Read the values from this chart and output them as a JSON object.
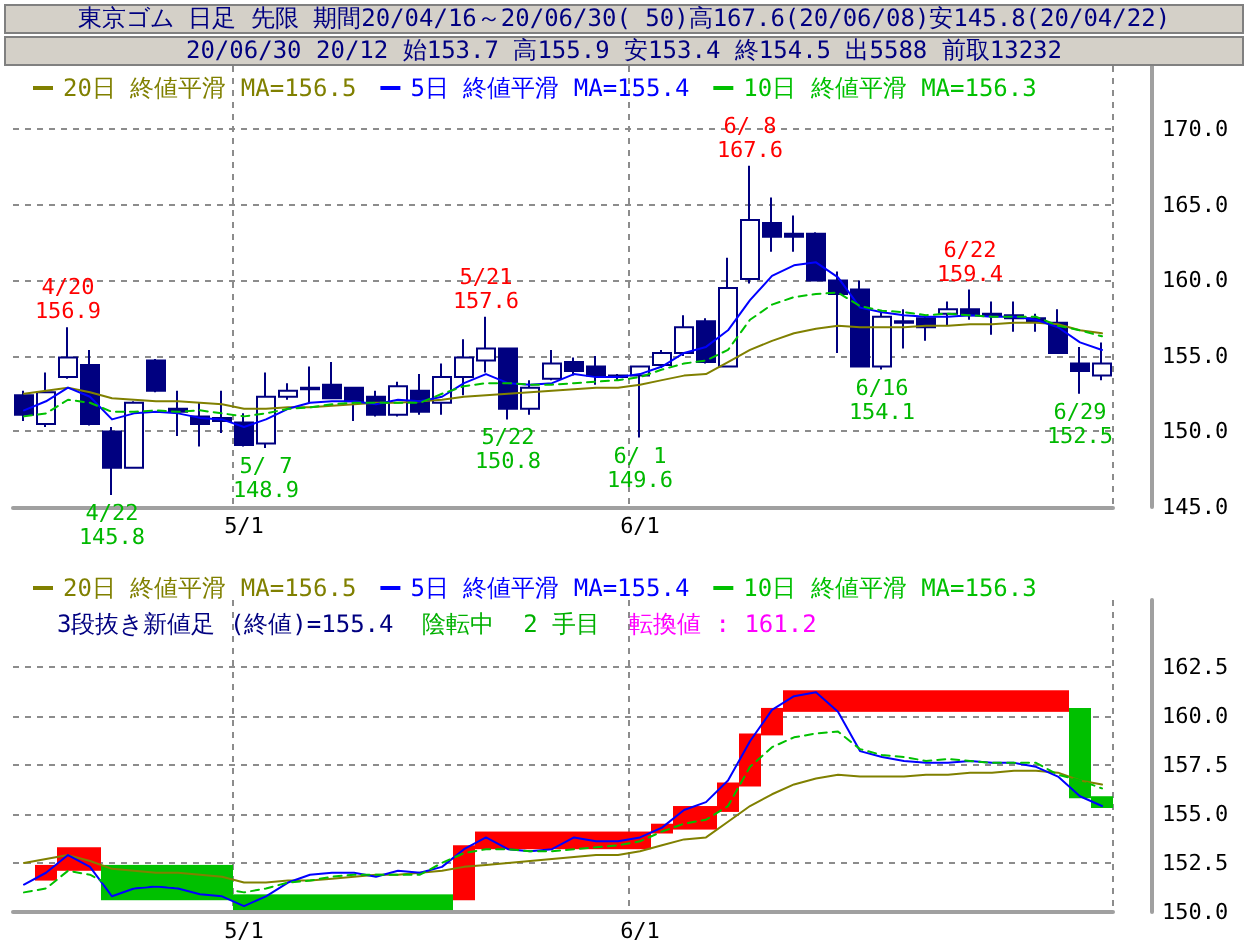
{
  "chart_data": [
    {
      "type": "candlestick",
      "title": "東京ゴム 日足 先限 期間20/04/16～20/06/30( 50)高167.6(20/06/08)安145.8(20/04/22)",
      "subtitle": "20/06/30 20/12 始153.7 高155.9 安153.4 終154.5 出5588 前取13232",
      "categories": [
        null,
        null,
        null,
        null,
        null,
        null,
        null,
        null,
        null,
        null,
        "5/1",
        null,
        null,
        null,
        null,
        null,
        null,
        null,
        null,
        null,
        null,
        null,
        null,
        null,
        null,
        null,
        null,
        null,
        "6/1",
        null,
        null,
        null,
        null,
        null,
        null,
        null,
        null,
        null,
        null,
        null,
        null,
        null,
        null,
        null,
        null,
        null,
        null,
        null,
        null,
        null
      ],
      "color": "#000080",
      "ohlc": [
        [
          152.4,
          152.7,
          150.7,
          151.1
        ],
        [
          150.5,
          153.9,
          150.3,
          152.6
        ],
        [
          153.6,
          156.9,
          153.5,
          154.9
        ],
        [
          154.4,
          155.4,
          150.4,
          150.5
        ],
        [
          150.0,
          150.3,
          145.8,
          147.6
        ],
        [
          147.6,
          152.0,
          147.6,
          151.9
        ],
        [
          154.7,
          154.8,
          152.6,
          152.7
        ],
        [
          151.5,
          152.7,
          149.7,
          151.3
        ],
        [
          151.0,
          151.9,
          149.0,
          150.5
        ],
        [
          150.9,
          152.7,
          149.9,
          150.7
        ],
        [
          150.6,
          151.2,
          149.0,
          149.1
        ],
        [
          149.2,
          153.9,
          148.9,
          152.3
        ],
        [
          152.3,
          153.2,
          152.1,
          152.7
        ],
        [
          152.9,
          154.3,
          151.9,
          152.8
        ],
        [
          153.1,
          154.6,
          152.2,
          152.2
        ],
        [
          152.9,
          152.9,
          150.7,
          152.0
        ],
        [
          152.3,
          152.7,
          151.0,
          151.1
        ],
        [
          151.1,
          153.3,
          151.0,
          153.0
        ],
        [
          152.7,
          153.8,
          151.1,
          151.3
        ],
        [
          151.9,
          154.5,
          151.1,
          153.6
        ],
        [
          153.6,
          156.1,
          152.4,
          154.9
        ],
        [
          154.7,
          157.6,
          153.9,
          155.5
        ],
        [
          155.5,
          155.5,
          150.8,
          151.5
        ],
        [
          151.5,
          153.4,
          151.1,
          152.9
        ],
        [
          153.5,
          155.4,
          153.4,
          154.5
        ],
        [
          154.6,
          154.9,
          153.7,
          154.0
        ],
        [
          154.3,
          155.0,
          153.1,
          153.7
        ],
        [
          153.7,
          153.8,
          153.4,
          153.6
        ],
        [
          153.7,
          154.3,
          149.6,
          154.3
        ],
        [
          154.4,
          155.4,
          154.2,
          155.2
        ],
        [
          155.2,
          157.7,
          155.0,
          156.9
        ],
        [
          157.3,
          157.5,
          154.5,
          154.6
        ],
        [
          154.3,
          161.5,
          154.3,
          159.5
        ],
        [
          160.1,
          167.6,
          159.8,
          164.0
        ],
        [
          163.8,
          165.5,
          161.9,
          162.9
        ],
        [
          163.1,
          164.3,
          161.9,
          162.9
        ],
        [
          163.1,
          163.2,
          160.0,
          160.0
        ],
        [
          160.0,
          160.6,
          155.2,
          159.1
        ],
        [
          159.4,
          160.0,
          154.3,
          154.3
        ],
        [
          154.3,
          157.9,
          154.1,
          157.6
        ],
        [
          157.3,
          158.1,
          155.5,
          157.2
        ],
        [
          157.5,
          157.7,
          156.0,
          156.9
        ],
        [
          157.8,
          158.6,
          157.0,
          158.1
        ],
        [
          158.1,
          159.4,
          157.4,
          157.7
        ],
        [
          157.8,
          158.6,
          156.4,
          157.7
        ],
        [
          157.7,
          158.6,
          156.6,
          157.5
        ],
        [
          157.5,
          157.8,
          156.6,
          157.3
        ],
        [
          157.2,
          158.1,
          155.2,
          155.2
        ],
        [
          154.5,
          155.6,
          152.5,
          154.0
        ],
        [
          153.7,
          155.9,
          153.4,
          154.5
        ]
      ],
      "series": [
        {
          "name": "20日 終値平滑 MA=156.5",
          "type": "line",
          "color": "#808000",
          "values": [
            152.5,
            152.7,
            152.9,
            152.6,
            152.2,
            152.1,
            152.0,
            152.0,
            151.9,
            151.8,
            151.5,
            151.5,
            151.6,
            151.6,
            151.7,
            151.8,
            151.9,
            151.9,
            152.0,
            152.1,
            152.3,
            152.4,
            152.5,
            152.6,
            152.7,
            152.8,
            152.9,
            152.9,
            153.1,
            153.4,
            153.7,
            153.8,
            154.6,
            155.4,
            156.0,
            156.5,
            156.8,
            157.0,
            156.9,
            156.9,
            156.9,
            157.0,
            157.0,
            157.1,
            157.1,
            157.2,
            157.2,
            157.1,
            156.7,
            156.5
          ]
        },
        {
          "name": "5日 終値平滑 MA=155.4",
          "type": "line",
          "color": "#0000ff",
          "values": [
            151.4,
            152.0,
            152.9,
            152.3,
            150.8,
            151.2,
            151.3,
            151.2,
            150.9,
            150.8,
            150.3,
            150.8,
            151.5,
            151.9,
            152.0,
            152.0,
            151.8,
            152.1,
            152.0,
            152.3,
            153.2,
            153.8,
            153.2,
            153.1,
            153.2,
            153.8,
            153.6,
            153.6,
            153.8,
            154.3,
            155.2,
            155.6,
            156.7,
            158.7,
            160.3,
            161.0,
            161.2,
            160.2,
            158.2,
            157.9,
            157.7,
            157.6,
            157.6,
            157.7,
            157.6,
            157.6,
            157.4,
            156.9,
            155.9,
            155.4
          ]
        },
        {
          "name": "10日 終値平滑 MA=156.3",
          "type": "line",
          "color": "#00c000",
          "line_style": "dashed",
          "values": [
            151.0,
            151.2,
            152.1,
            151.9,
            151.3,
            151.3,
            151.4,
            151.3,
            151.4,
            151.2,
            151.0,
            151.2,
            151.5,
            151.6,
            151.8,
            151.9,
            151.9,
            151.9,
            151.9,
            152.5,
            153.0,
            153.2,
            153.2,
            153.1,
            153.1,
            153.2,
            153.3,
            153.4,
            153.6,
            154.1,
            154.5,
            154.7,
            155.4,
            157.4,
            158.4,
            158.9,
            159.1,
            159.2,
            158.3,
            158.0,
            157.9,
            157.7,
            157.8,
            157.7,
            157.6,
            157.6,
            157.6,
            157.0,
            156.7,
            156.3
          ]
        }
      ],
      "ylim": [
        145,
        174.2
      ],
      "yticks": [
        {
          "value": 145,
          "label": "145.0"
        },
        {
          "value": 150,
          "label": "150.0"
        },
        {
          "value": 155,
          "label": "155.0"
        },
        {
          "value": 160,
          "label": "160.0"
        },
        {
          "value": 165,
          "label": "165.0"
        },
        {
          "value": 170,
          "label": "170.0"
        }
      ],
      "grid": true,
      "legend": "top left",
      "marker": "none",
      "annotations": [
        {
          "text": "4/20\n156.9",
          "y": 156.9
        },
        {
          "text": "4/22\n145.8",
          "y": 145.8
        },
        {
          "text": "5/ 7\n148.9",
          "y": 148.9
        },
        {
          "text": "5/21\n157.6",
          "y": 157.6
        },
        {
          "text": "5/22\n150.8",
          "y": 150.8
        },
        {
          "text": "6/ 1\n149.6",
          "y": 149.6
        },
        {
          "text": "6/ 8\n167.6",
          "y": 167.6
        },
        {
          "text": "6/16\n154.1",
          "y": 154.1
        },
        {
          "text": "6/22\n159.4",
          "y": 159.4
        },
        {
          "text": "6/29\n152.5",
          "y": 152.5
        }
      ]
    },
    {
      "type": "bar",
      "categories": [
        null,
        null,
        null,
        null,
        null,
        null,
        null,
        null,
        null,
        null,
        "5/1",
        null,
        null,
        null,
        null,
        null,
        null,
        null,
        null,
        null,
        null,
        null,
        null,
        null,
        null,
        null,
        null,
        null,
        "6/1",
        null,
        null,
        null,
        null,
        null,
        null,
        null,
        null,
        null,
        null,
        null,
        null,
        null,
        null,
        null,
        null,
        null,
        null,
        null,
        null,
        null
      ],
      "series": [
        {
          "type": "bar",
          "values": [
            null,
            0.8,
            1.2,
            1.2,
            1.8,
            1.8,
            1.8,
            1.8,
            1.8,
            1.8,
            0.8,
            0.8,
            0.8,
            0.8,
            0.8,
            0.8,
            0.8,
            0.8,
            0.8,
            0.8,
            2.8,
            0.9,
            0.9,
            0.9,
            0.9,
            0.9,
            0.9,
            0.9,
            0.9,
            0.5,
            1.2,
            1.2,
            1.5,
            2.7,
            1.4,
            1.1,
            1.1,
            1.1,
            1.1,
            1.1,
            1.1,
            1.1,
            1.1,
            1.1,
            1.1,
            1.1,
            1.1,
            1.1,
            4.6,
            0.6
          ],
          "base": [
            null,
            151.6,
            152.1,
            152.1,
            150.6,
            150.6,
            150.6,
            150.6,
            150.6,
            150.6,
            150.1,
            150.1,
            150.1,
            150.1,
            150.1,
            150.1,
            150.1,
            150.1,
            150.1,
            150.1,
            150.6,
            153.2,
            153.2,
            153.2,
            153.2,
            153.2,
            153.2,
            153.2,
            153.2,
            154.0,
            154.2,
            154.2,
            155.1,
            156.4,
            159.0,
            160.2,
            160.2,
            160.2,
            160.2,
            160.2,
            160.2,
            160.2,
            160.2,
            160.2,
            160.2,
            160.2,
            160.2,
            160.2,
            155.8,
            155.3
          ],
          "colors": [
            null,
            "#ff0000",
            "#ff0000",
            "#ff0000",
            "#00c000",
            "#00c000",
            "#00c000",
            "#00c000",
            "#00c000",
            "#00c000",
            "#00c000",
            "#00c000",
            "#00c000",
            "#00c000",
            "#00c000",
            "#00c000",
            "#00c000",
            "#00c000",
            "#00c000",
            "#00c000",
            "#ff0000",
            "#ff0000",
            "#ff0000",
            "#ff0000",
            "#ff0000",
            "#ff0000",
            "#ff0000",
            "#ff0000",
            "#ff0000",
            "#ff0000",
            "#ff0000",
            "#ff0000",
            "#ff0000",
            "#ff0000",
            "#ff0000",
            "#ff0000",
            "#ff0000",
            "#ff0000",
            "#ff0000",
            "#ff0000",
            "#ff0000",
            "#ff0000",
            "#ff0000",
            "#ff0000",
            "#ff0000",
            "#ff0000",
            "#ff0000",
            "#ff0000",
            "#00c000",
            "#00c000"
          ]
        },
        {
          "name": "20日 終値平滑 MA=156.5",
          "type": "line",
          "color": "#808000",
          "values": [
            152.5,
            152.7,
            152.9,
            152.6,
            152.2,
            152.1,
            152.0,
            152.0,
            151.9,
            151.8,
            151.5,
            151.5,
            151.6,
            151.6,
            151.7,
            151.8,
            151.9,
            151.9,
            152.0,
            152.1,
            152.3,
            152.4,
            152.5,
            152.6,
            152.7,
            152.8,
            152.9,
            152.9,
            153.1,
            153.4,
            153.7,
            153.8,
            154.6,
            155.4,
            156.0,
            156.5,
            156.8,
            157.0,
            156.9,
            156.9,
            156.9,
            157.0,
            157.0,
            157.1,
            157.1,
            157.2,
            157.2,
            157.1,
            156.7,
            156.5
          ]
        },
        {
          "name": "5日 終値平滑 MA=155.4",
          "type": "line",
          "color": "#0000ff",
          "values": [
            151.4,
            152.0,
            152.9,
            152.3,
            150.8,
            151.2,
            151.3,
            151.2,
            150.9,
            150.8,
            150.3,
            150.8,
            151.5,
            151.9,
            152.0,
            152.0,
            151.8,
            152.1,
            152.0,
            152.3,
            153.2,
            153.8,
            153.2,
            153.1,
            153.2,
            153.8,
            153.6,
            153.6,
            153.8,
            154.3,
            155.2,
            155.6,
            156.7,
            158.7,
            160.3,
            161.0,
            161.2,
            160.2,
            158.2,
            157.9,
            157.7,
            157.6,
            157.6,
            157.7,
            157.6,
            157.6,
            157.4,
            156.9,
            155.9,
            155.4
          ]
        },
        {
          "name": "10日 終値平滑 MA=156.3",
          "type": "line",
          "color": "#00c000",
          "line_style": "dashed",
          "values": [
            151.0,
            151.2,
            152.1,
            151.9,
            151.3,
            151.3,
            151.4,
            151.3,
            151.4,
            151.2,
            151.0,
            151.2,
            151.5,
            151.6,
            151.8,
            151.9,
            151.9,
            151.9,
            151.9,
            152.5,
            153.0,
            153.2,
            153.2,
            153.1,
            153.1,
            153.2,
            153.3,
            153.4,
            153.6,
            154.1,
            154.5,
            154.7,
            155.4,
            157.4,
            158.4,
            158.9,
            159.1,
            159.2,
            158.3,
            158.0,
            157.9,
            157.7,
            157.8,
            157.7,
            157.6,
            157.6,
            157.6,
            157.0,
            156.7,
            156.3
          ]
        }
      ],
      "ylim": [
        150,
        165.9
      ],
      "yticks": [
        {
          "value": 150,
          "label": "150.0"
        },
        {
          "value": 152.5,
          "label": "152.5"
        },
        {
          "value": 155,
          "label": "155.0"
        },
        {
          "value": 157.5,
          "label": "157.5"
        },
        {
          "value": 160,
          "label": "160.0"
        },
        {
          "value": 162.5,
          "label": "162.5"
        }
      ],
      "grid": true,
      "legend": "top left",
      "marker": "none",
      "annotations": [
        "3段抜き新値足 (終値)=155.4",
        "陰転中",
        "2 手目",
        "転換値 : 161.2"
      ]
    }
  ]
}
